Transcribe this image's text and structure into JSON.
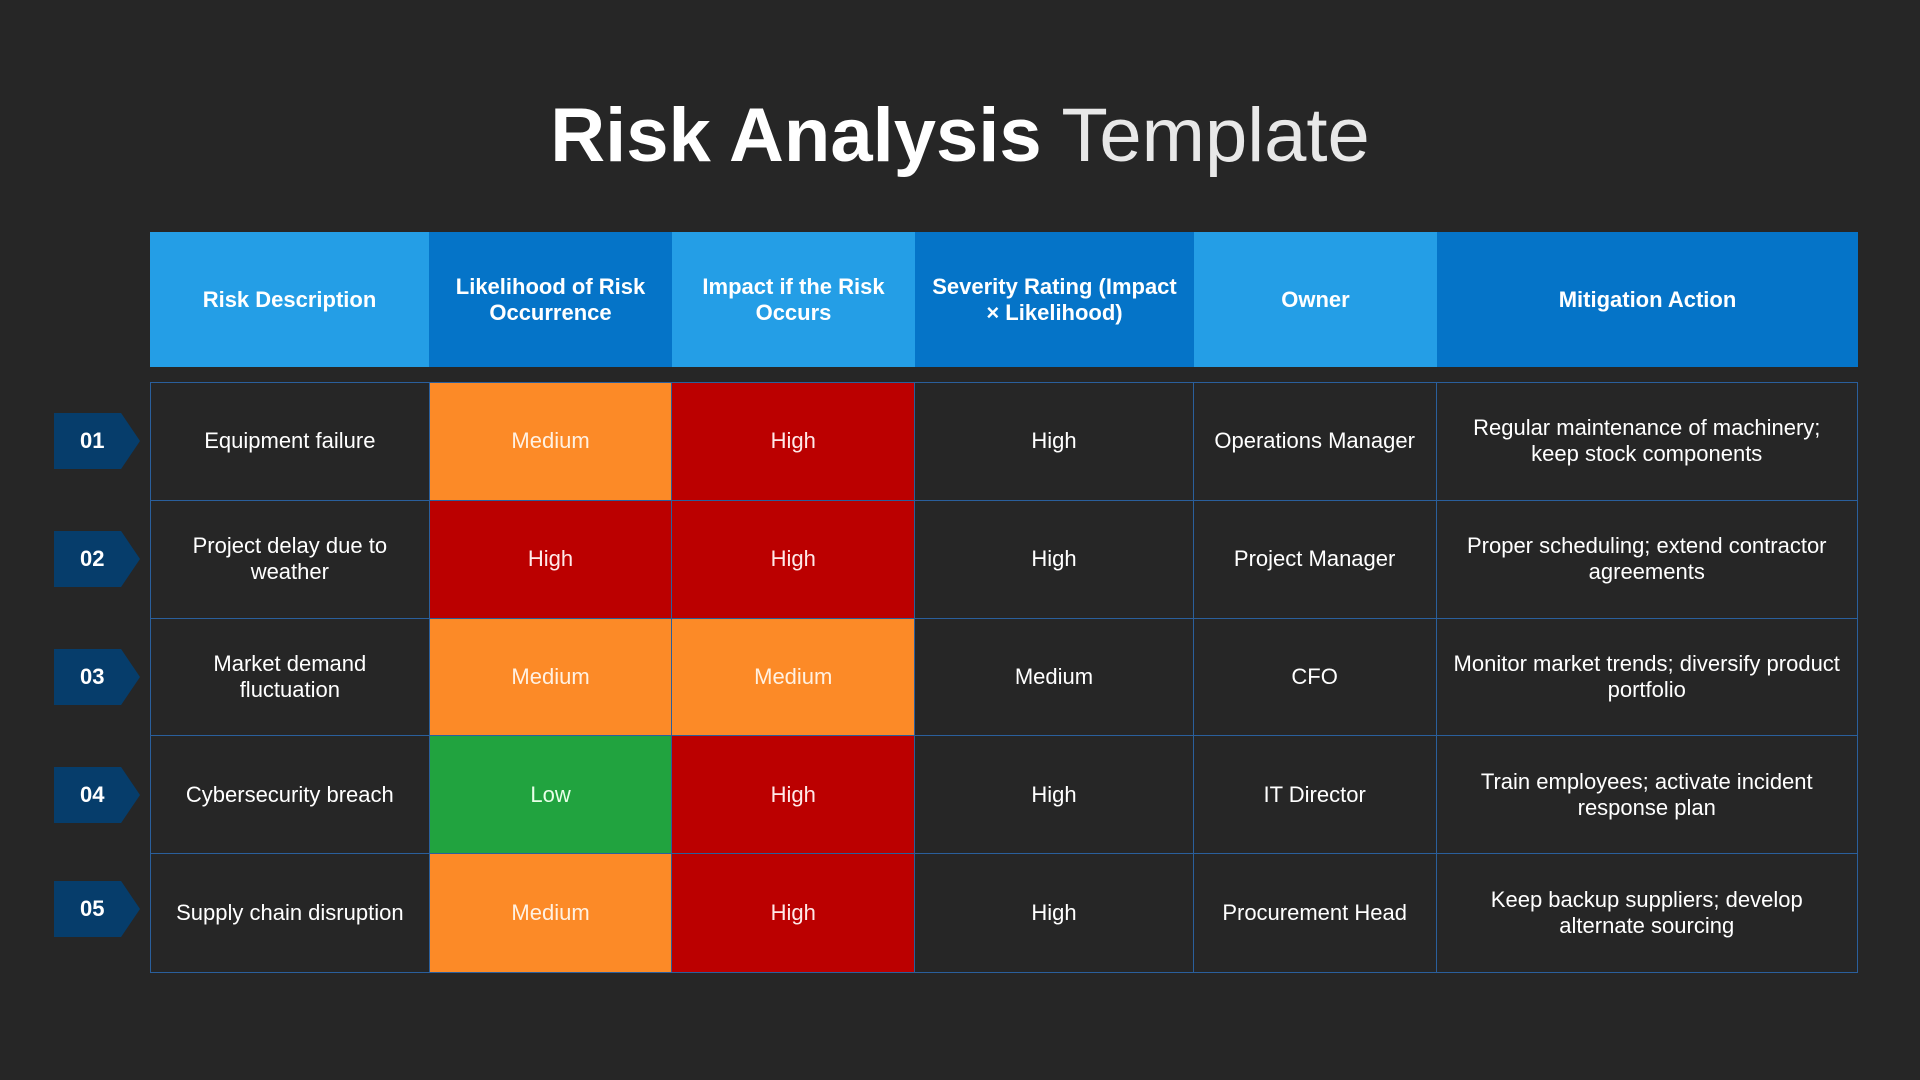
{
  "title": {
    "bold": "Risk Analysis",
    "light": "Template"
  },
  "headers": [
    "Risk Description",
    "Likelihood of Risk Occurrence",
    "Impact if the Risk Occurs",
    "Severity Rating (Impact × Likelihood)",
    "Owner",
    "Mitigation Action"
  ],
  "rows": [
    {
      "number": "01",
      "description": "Equipment failure",
      "likelihood": "Medium",
      "impact": "High",
      "severity": "High",
      "owner": "Operations Manager",
      "mitigation": "Regular maintenance of machinery; keep stock components"
    },
    {
      "number": "02",
      "description": "Project delay due to weather",
      "likelihood": "High",
      "impact": "High",
      "severity": "High",
      "owner": "Project Manager",
      "mitigation": "Proper scheduling; extend contractor agreements"
    },
    {
      "number": "03",
      "description": "Market demand fluctuation",
      "likelihood": "Medium",
      "impact": "Medium",
      "severity": "Medium",
      "owner": "CFO",
      "mitigation": "Monitor market trends; diversify product portfolio"
    },
    {
      "number": "04",
      "description": "Cybersecurity breach",
      "likelihood": "Low",
      "impact": "High",
      "severity": "High",
      "owner": "IT Director",
      "mitigation": "Train employees; activate incident response plan"
    },
    {
      "number": "05",
      "description": "Supply chain disruption",
      "likelihood": "Medium",
      "impact": "High",
      "severity": "High",
      "owner": "Procurement Head",
      "mitigation": "Keep backup suppliers; develop alternate sourcing"
    }
  ],
  "level_colors": {
    "Low": "#21a33f",
    "Medium": "#fc8a27",
    "High": "#bb0000"
  },
  "header_colors": {
    "light": "#249ee6",
    "dark": "#0574c8"
  },
  "badge_color": "#063d6b",
  "background": "#262626"
}
